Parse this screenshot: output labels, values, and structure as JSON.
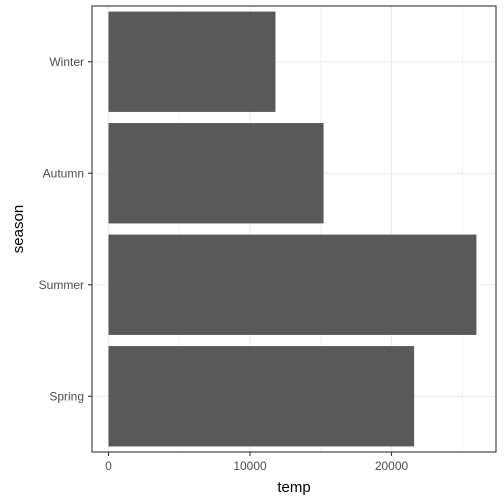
{
  "chart_data": {
    "type": "bar",
    "orientation": "horizontal",
    "categories": [
      "Spring",
      "Summer",
      "Autumn",
      "Winter"
    ],
    "values": [
      21600,
      26000,
      15200,
      11800
    ],
    "xlabel": "temp",
    "ylabel": "season",
    "xlim": [
      0,
      27300
    ],
    "xticks": [
      0,
      10000,
      20000
    ],
    "x_tick_labels": [
      "0",
      "10000",
      "20000"
    ],
    "grid": true,
    "bar_color": "#595959",
    "grid_color": "#ebebeb",
    "panel_border_color": "#333333"
  }
}
